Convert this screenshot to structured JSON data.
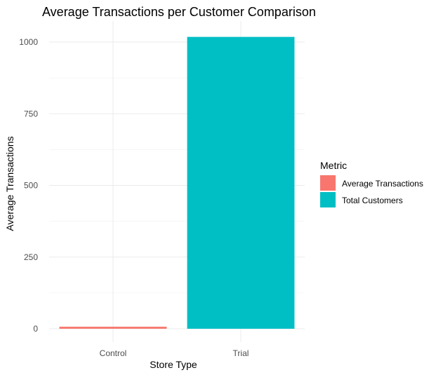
{
  "chart_data": {
    "type": "bar",
    "title": "Average Transactions per Customer Comparison",
    "xlabel": "Store Type",
    "ylabel": "Average Transactions",
    "categories": [
      "Control",
      "Trial"
    ],
    "series": [
      {
        "name": "Average Transactions",
        "color": "#F8766D",
        "values": [
          7,
          null
        ]
      },
      {
        "name": "Total Customers",
        "color": "#00BFC4",
        "values": [
          null,
          1018
        ]
      }
    ],
    "yticks": [
      0,
      250,
      500,
      750,
      1000
    ],
    "ylim": [
      0,
      1060
    ],
    "grid": true,
    "legend": {
      "title": "Metric",
      "position": "right"
    }
  }
}
